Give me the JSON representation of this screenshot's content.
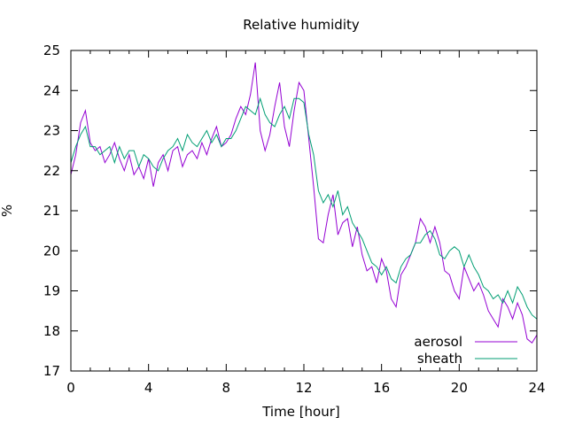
{
  "chart_data": {
    "type": "line",
    "title": "Relative humidity",
    "xlabel": "Time [hour]",
    "ylabel": "%",
    "xlim": [
      0,
      24
    ],
    "ylim": [
      17,
      25
    ],
    "xticks": [
      0,
      4,
      8,
      12,
      16,
      20,
      24
    ],
    "xtick_labels": [
      "0",
      "4",
      "8",
      "12",
      "16",
      "20",
      "24"
    ],
    "yticks": [
      17,
      18,
      19,
      20,
      21,
      22,
      23,
      24,
      25
    ],
    "ytick_labels": [
      "17",
      "18",
      "19",
      "20",
      "21",
      "22",
      "23",
      "24",
      "25"
    ],
    "grid": false,
    "legend": "bottom-right",
    "series": [
      {
        "name": "aerosol",
        "color": "#9400d3",
        "x": [
          0,
          0.25,
          0.5,
          0.75,
          1,
          1.25,
          1.5,
          1.75,
          2,
          2.25,
          2.5,
          2.75,
          3,
          3.25,
          3.5,
          3.75,
          4,
          4.25,
          4.5,
          4.75,
          5,
          5.25,
          5.5,
          5.75,
          6,
          6.25,
          6.5,
          6.75,
          7,
          7.25,
          7.5,
          7.75,
          8,
          8.25,
          8.5,
          8.75,
          9,
          9.25,
          9.5,
          9.75,
          10,
          10.25,
          10.5,
          10.75,
          11,
          11.25,
          11.5,
          11.75,
          12,
          12.25,
          12.5,
          12.75,
          13,
          13.25,
          13.5,
          13.75,
          14,
          14.25,
          14.5,
          14.75,
          15,
          15.25,
          15.5,
          15.75,
          16,
          16.25,
          16.5,
          16.75,
          17,
          17.25,
          17.5,
          17.75,
          18,
          18.25,
          18.5,
          18.75,
          19,
          19.25,
          19.5,
          19.75,
          20,
          20.25,
          20.5,
          20.75,
          21,
          21.25,
          21.5,
          21.75,
          22,
          22.25,
          22.5,
          22.75,
          23,
          23.25,
          23.5,
          23.75,
          24
        ],
        "values": [
          21.9,
          22.4,
          23.2,
          23.5,
          22.7,
          22.5,
          22.6,
          22.2,
          22.4,
          22.7,
          22.3,
          22.0,
          22.4,
          21.9,
          22.1,
          21.8,
          22.3,
          21.6,
          22.2,
          22.4,
          22.0,
          22.5,
          22.6,
          22.1,
          22.4,
          22.5,
          22.3,
          22.7,
          22.4,
          22.8,
          23.1,
          22.6,
          22.7,
          22.9,
          23.3,
          23.6,
          23.4,
          23.9,
          24.7,
          23.0,
          22.5,
          22.9,
          23.6,
          24.2,
          23.1,
          22.6,
          23.5,
          24.2,
          24.0,
          22.8,
          21.6,
          20.3,
          20.2,
          20.9,
          21.4,
          20.4,
          20.7,
          20.8,
          20.1,
          20.6,
          19.9,
          19.5,
          19.6,
          19.2,
          19.8,
          19.5,
          18.8,
          18.6,
          19.4,
          19.6,
          19.9,
          20.2,
          20.8,
          20.6,
          20.2,
          20.6,
          20.2,
          19.5,
          19.4,
          19.0,
          18.8,
          19.6,
          19.3,
          19.0,
          19.2,
          18.9,
          18.5,
          18.3,
          18.1,
          18.8,
          18.6,
          18.3,
          18.7,
          18.4,
          17.8,
          17.7,
          17.9
        ]
      },
      {
        "name": "sheath",
        "color": "#009e73",
        "x": [
          0,
          0.25,
          0.5,
          0.75,
          1,
          1.25,
          1.5,
          1.75,
          2,
          2.25,
          2.5,
          2.75,
          3,
          3.25,
          3.5,
          3.75,
          4,
          4.25,
          4.5,
          4.75,
          5,
          5.25,
          5.5,
          5.75,
          6,
          6.25,
          6.5,
          6.75,
          7,
          7.25,
          7.5,
          7.75,
          8,
          8.25,
          8.5,
          8.75,
          9,
          9.25,
          9.5,
          9.75,
          10,
          10.25,
          10.5,
          10.75,
          11,
          11.25,
          11.5,
          11.75,
          12,
          12.25,
          12.5,
          12.75,
          13,
          13.25,
          13.5,
          13.75,
          14,
          14.25,
          14.5,
          14.75,
          15,
          15.25,
          15.5,
          15.75,
          16,
          16.25,
          16.5,
          16.75,
          17,
          17.25,
          17.5,
          17.75,
          18,
          18.25,
          18.5,
          18.75,
          19,
          19.25,
          19.5,
          19.75,
          20,
          20.25,
          20.5,
          20.75,
          21,
          21.25,
          21.5,
          21.75,
          22,
          22.25,
          22.5,
          22.75,
          23,
          23.25,
          23.5,
          23.75,
          24
        ],
        "values": [
          22.2,
          22.6,
          22.9,
          23.1,
          22.6,
          22.6,
          22.4,
          22.5,
          22.6,
          22.2,
          22.6,
          22.3,
          22.5,
          22.5,
          22.1,
          22.4,
          22.3,
          22.1,
          22.0,
          22.3,
          22.5,
          22.6,
          22.8,
          22.5,
          22.9,
          22.7,
          22.6,
          22.8,
          23.0,
          22.7,
          22.9,
          22.6,
          22.8,
          22.8,
          23.0,
          23.3,
          23.6,
          23.5,
          23.4,
          23.8,
          23.4,
          23.2,
          23.1,
          23.4,
          23.6,
          23.3,
          23.8,
          23.8,
          23.7,
          22.9,
          22.4,
          21.5,
          21.2,
          21.4,
          21.1,
          21.5,
          20.9,
          21.1,
          20.7,
          20.5,
          20.3,
          20.0,
          19.7,
          19.6,
          19.4,
          19.6,
          19.3,
          19.2,
          19.6,
          19.8,
          19.9,
          20.2,
          20.2,
          20.4,
          20.5,
          20.3,
          19.9,
          19.8,
          20.0,
          20.1,
          20.0,
          19.6,
          19.9,
          19.6,
          19.4,
          19.1,
          19.0,
          18.8,
          18.9,
          18.7,
          19.0,
          18.7,
          19.1,
          18.9,
          18.6,
          18.4,
          18.3
        ]
      }
    ]
  }
}
